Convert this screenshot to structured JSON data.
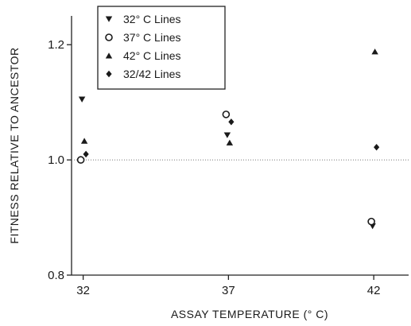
{
  "chart_data": {
    "type": "scatter",
    "xlabel": "ASSAY TEMPERATURE (° C)",
    "ylabel": "FITNESS RELATIVE TO ANCESTOR",
    "categories": [
      "32",
      "37",
      "42"
    ],
    "xlim": [
      31.6,
      43.2
    ],
    "ylim": [
      0.8,
      1.25
    ],
    "yticks": [
      "0.8",
      "1.0",
      "1.2"
    ],
    "reference_line": 1.0,
    "legend_position": "top-left",
    "series": [
      {
        "name": "32° C Lines",
        "marker": "triangle-down",
        "x": [
          32,
          37,
          42
        ],
        "y": [
          1.105,
          1.043,
          0.885
        ]
      },
      {
        "name": "37° C Lines",
        "marker": "circle-open",
        "x": [
          32,
          37,
          42
        ],
        "y": [
          1.0,
          1.079,
          0.893
        ]
      },
      {
        "name": "42° C Lines",
        "marker": "triangle-up",
        "x": [
          32,
          37,
          42
        ],
        "y": [
          1.033,
          1.03,
          1.188
        ]
      },
      {
        "name": "32/42 Lines",
        "marker": "diamond",
        "x": [
          32,
          37,
          42
        ],
        "y": [
          1.01,
          1.066,
          1.022
        ]
      }
    ]
  }
}
